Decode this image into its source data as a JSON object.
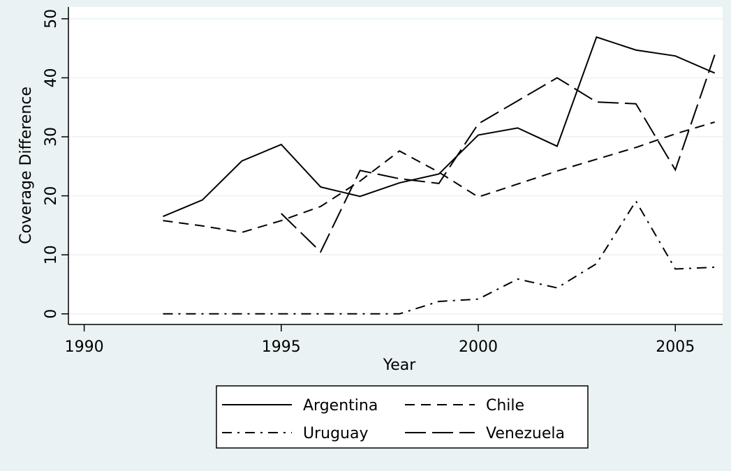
{
  "chart_data": {
    "type": "line",
    "x_label": "Year",
    "y_label": "Coverage Difference",
    "x": [
      1992,
      1993,
      1994,
      1995,
      1996,
      1997,
      1998,
      1999,
      2000,
      2001,
      2002,
      2003,
      2004,
      2005,
      2006
    ],
    "series": [
      {
        "name": "Argentina",
        "color": "#000000",
        "dash": "solid",
        "values": [
          16.5,
          19.3,
          25.9,
          28.7,
          21.5,
          19.9,
          22.2,
          23.7,
          30.3,
          31.5,
          28.4,
          46.9,
          44.7,
          43.7,
          40.8
        ]
      },
      {
        "name": "Chile",
        "color": "#000000",
        "dash": "dash",
        "values": [
          15.8,
          14.9,
          13.8,
          15.8,
          18.2,
          22.5,
          27.6,
          24.0,
          19.8,
          22.0,
          24.2,
          26.2,
          28.2,
          30.5,
          32.5
        ]
      },
      {
        "name": "Uruguay",
        "color": "#000000",
        "dash": "dash-dot",
        "values": [
          0,
          0,
          0,
          0,
          0,
          0,
          0,
          2.1,
          2.5,
          5.9,
          4.4,
          8.5,
          19.1,
          7.6,
          7.9
        ]
      },
      {
        "name": "Venezuela",
        "color": "#000000",
        "dash": "long-dash",
        "values": [
          null,
          null,
          null,
          17.0,
          10.5,
          24.3,
          22.9,
          22.1,
          32.2,
          36.1,
          40.0,
          35.9,
          35.6,
          24.4,
          43.9
        ]
      }
    ],
    "xlim": [
      1989.6,
      2006.2
    ],
    "ylim": [
      -1.8,
      52
    ],
    "xticks": [
      1990,
      1995,
      2000,
      2005
    ],
    "yticks": [
      0,
      10,
      20,
      30,
      40,
      50
    ],
    "grid": true,
    "legend": "bottom"
  }
}
